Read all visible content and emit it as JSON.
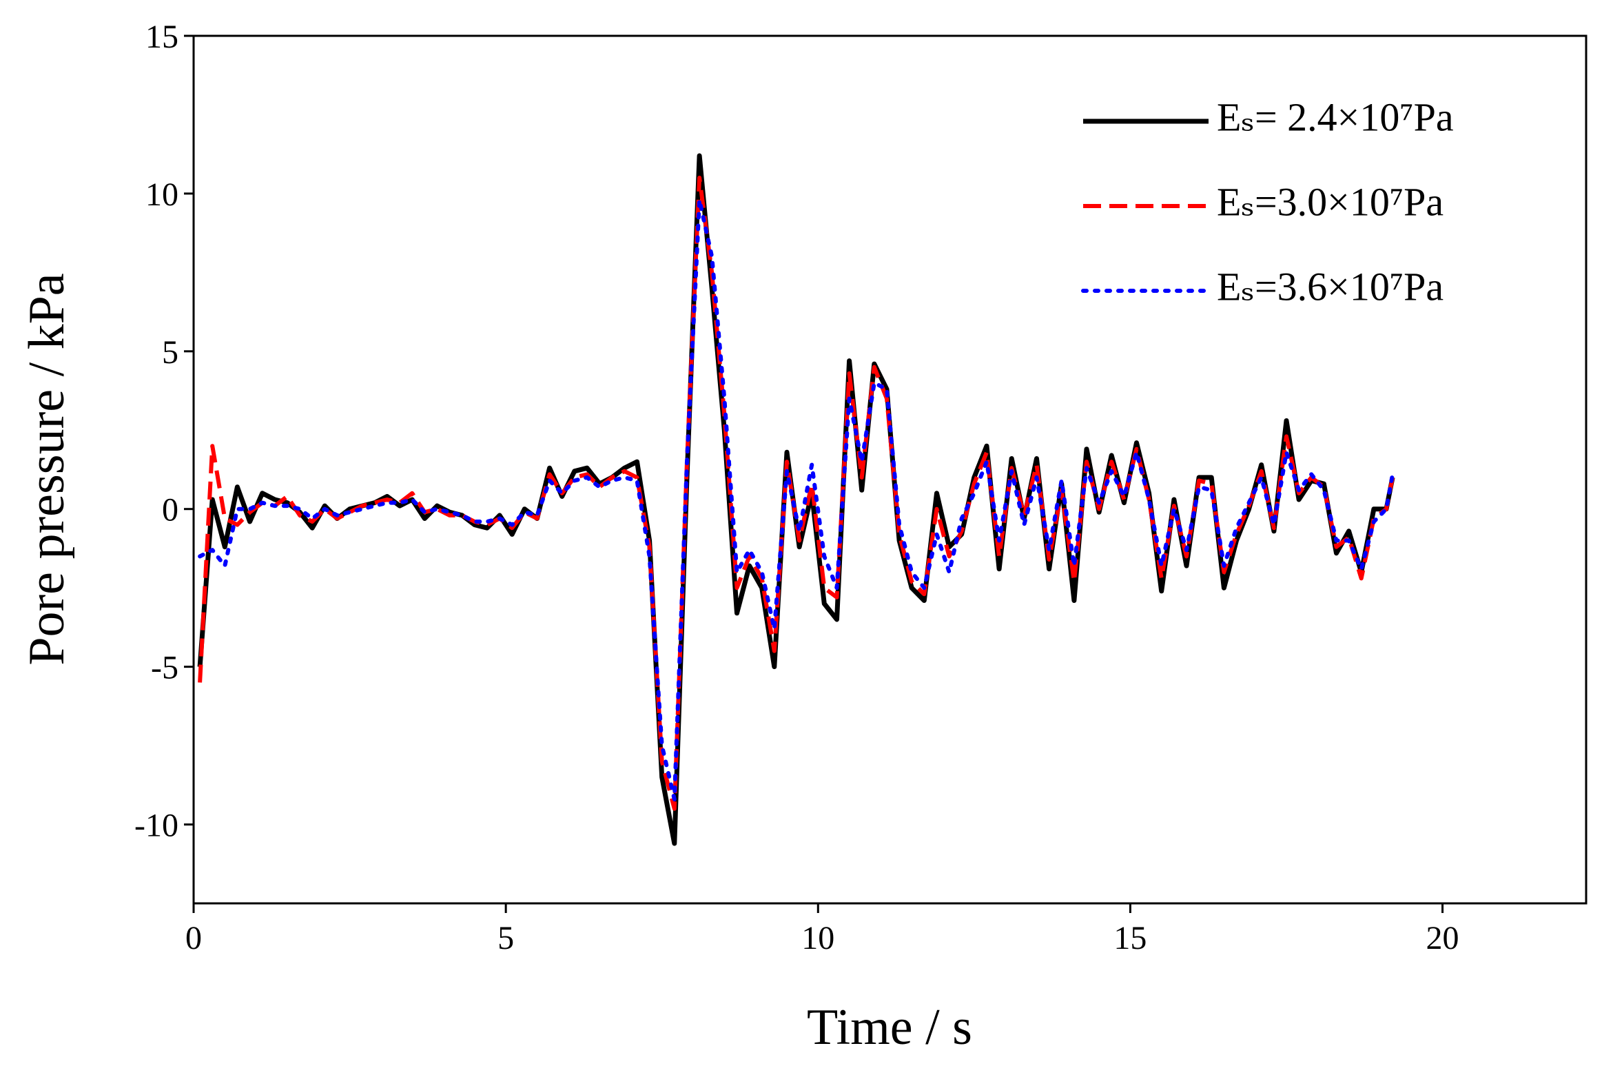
{
  "chart_data": {
    "type": "line",
    "x_label": "Time / s",
    "y_label": "Pore pressure / kPa",
    "xlim": [
      0,
      22.3
    ],
    "ylim": [
      -12.5,
      15
    ],
    "xticks": [
      0,
      5,
      10,
      15,
      20
    ],
    "yticks": [
      -10,
      -5,
      0,
      5,
      10,
      15
    ],
    "legend": "upper right",
    "x": [
      0.1,
      0.3,
      0.5,
      0.7,
      0.9,
      1.1,
      1.3,
      1.5,
      1.7,
      1.9,
      2.1,
      2.3,
      2.5,
      2.7,
      2.9,
      3.1,
      3.3,
      3.5,
      3.7,
      3.9,
      4.1,
      4.3,
      4.5,
      4.7,
      4.9,
      5.1,
      5.3,
      5.5,
      5.7,
      5.9,
      6.1,
      6.3,
      6.5,
      6.7,
      6.9,
      7.1,
      7.3,
      7.5,
      7.7,
      7.9,
      8.1,
      8.3,
      8.5,
      8.7,
      8.9,
      9.1,
      9.3,
      9.5,
      9.7,
      9.9,
      10.1,
      10.3,
      10.5,
      10.7,
      10.9,
      11.1,
      11.3,
      11.5,
      11.7,
      11.9,
      12.1,
      12.3,
      12.5,
      12.7,
      12.9,
      13.1,
      13.3,
      13.5,
      13.7,
      13.9,
      14.1,
      14.3,
      14.5,
      14.7,
      14.9,
      15.1,
      15.3,
      15.5,
      15.7,
      15.9,
      16.1,
      16.3,
      16.5,
      16.7,
      16.9,
      17.1,
      17.3,
      17.5,
      17.7,
      17.9,
      18.1,
      18.3,
      18.5,
      18.7,
      18.9,
      19.1,
      19.2
    ],
    "series": [
      {
        "name": "Eₛ= 2.4×10⁷Pa",
        "color": "#000000",
        "dash": "solid",
        "values": [
          -5,
          0.3,
          -1.2,
          0.7,
          -0.4,
          0.5,
          0.3,
          0.2,
          -0.1,
          -0.6,
          0.1,
          -0.3,
          0.0,
          0.1,
          0.2,
          0.4,
          0.1,
          0.3,
          -0.3,
          0.1,
          -0.1,
          -0.2,
          -0.5,
          -0.6,
          -0.2,
          -0.8,
          0.0,
          -0.3,
          1.3,
          0.4,
          1.2,
          1.3,
          0.8,
          1.0,
          1.3,
          1.5,
          -1.0,
          -8.5,
          -10.6,
          1.0,
          11.2,
          7.0,
          2.5,
          -3.3,
          -1.8,
          -2.5,
          -5.0,
          1.8,
          -1.2,
          0.5,
          -3.0,
          -3.5,
          4.7,
          0.6,
          4.6,
          3.8,
          -1.0,
          -2.5,
          -2.9,
          0.5,
          -1.2,
          -0.8,
          1.0,
          2.0,
          -1.9,
          1.6,
          -0.3,
          1.6,
          -1.9,
          0.8,
          -2.9,
          1.9,
          -0.1,
          1.7,
          0.2,
          2.1,
          0.5,
          -2.6,
          0.3,
          -1.8,
          1.0,
          1.0,
          -2.5,
          -1.0,
          0.0,
          1.4,
          -0.7,
          2.8,
          0.3,
          0.9,
          0.8,
          -1.4,
          -0.7,
          -2.0,
          0.0,
          0.0,
          1.0
        ]
      },
      {
        "name": "Eₛ=3.0×10⁷Pa",
        "color": "#ff0000",
        "dash": "dashed",
        "values": [
          -5.5,
          2.0,
          -0.3,
          -0.5,
          -0.1,
          0.2,
          0.1,
          0.4,
          -0.2,
          -0.4,
          0.0,
          -0.3,
          -0.1,
          0.1,
          0.2,
          0.3,
          0.2,
          0.5,
          -0.1,
          0.0,
          -0.2,
          -0.2,
          -0.4,
          -0.5,
          -0.3,
          -0.6,
          -0.1,
          -0.3,
          1.1,
          0.5,
          1.0,
          1.1,
          0.7,
          1.0,
          1.2,
          1.0,
          -1.2,
          -8.0,
          -9.5,
          1.5,
          10.5,
          7.5,
          3.0,
          -2.5,
          -1.5,
          -2.2,
          -4.5,
          1.5,
          -1.0,
          0.8,
          -2.5,
          -2.8,
          4.3,
          1.0,
          4.5,
          3.5,
          -0.8,
          -2.3,
          -2.7,
          0.0,
          -1.5,
          -0.7,
          0.8,
          1.8,
          -1.5,
          1.3,
          -0.2,
          1.4,
          -1.6,
          0.6,
          -2.3,
          1.5,
          0.0,
          1.5,
          0.3,
          1.9,
          0.3,
          -2.2,
          0.1,
          -1.5,
          0.9,
          0.8,
          -2.0,
          -0.8,
          0.1,
          1.2,
          -0.6,
          2.3,
          0.5,
          1.0,
          0.7,
          -1.2,
          -0.9,
          -2.2,
          -0.3,
          0.0,
          1.0
        ]
      },
      {
        "name": "Eₛ=3.6×10⁷Pa",
        "color": "#0000ff",
        "dash": "dotted",
        "values": [
          -1.5,
          -1.3,
          -1.8,
          0.0,
          0.0,
          0.2,
          0.1,
          0.1,
          0.0,
          -0.3,
          0.0,
          -0.2,
          -0.1,
          0.0,
          0.1,
          0.2,
          0.2,
          0.3,
          -0.1,
          0.0,
          -0.1,
          -0.2,
          -0.4,
          -0.4,
          -0.3,
          -0.5,
          -0.1,
          -0.2,
          0.9,
          0.5,
          0.9,
          1.0,
          0.7,
          0.9,
          1.0,
          0.9,
          -1.5,
          -7.5,
          -9.2,
          1.5,
          9.8,
          8.0,
          3.5,
          -2.0,
          -1.3,
          -2.0,
          -3.8,
          1.2,
          -0.7,
          1.4,
          -1.5,
          -2.5,
          3.5,
          1.5,
          4.0,
          3.8,
          -0.5,
          -2.0,
          -2.5,
          -0.8,
          -2.0,
          -0.3,
          0.5,
          1.5,
          -1.0,
          1.2,
          -0.5,
          1.0,
          -1.3,
          0.9,
          -1.8,
          1.3,
          0.2,
          1.2,
          0.4,
          1.8,
          0.3,
          -1.8,
          0.0,
          -1.3,
          0.7,
          0.6,
          -1.8,
          -0.6,
          0.2,
          1.0,
          -0.5,
          1.8,
          0.6,
          1.1,
          0.6,
          -1.0,
          -1.0,
          -1.9,
          -0.4,
          0.0,
          1.1
        ]
      }
    ]
  }
}
